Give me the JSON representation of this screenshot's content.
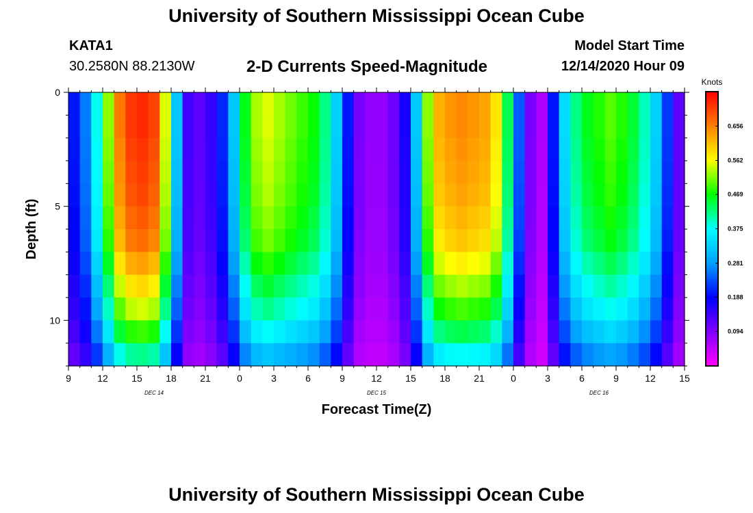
{
  "header": {
    "main_title": "University of Southern Mississippi Ocean Cube",
    "station_id": "KATA1",
    "station_coords": "30.2580N 88.2130W",
    "chart_title": "2-D Currents Speed-Magnitude",
    "model_start_label": "Model Start Time",
    "model_start_value": "12/14/2020 Hour 09"
  },
  "footer": {
    "repeat_title": "University of Southern Mississippi Ocean Cube"
  },
  "chart_data": {
    "type": "heatmap",
    "title": "2-D Currents Speed-Magnitude",
    "xlabel": "Forecast Time(Z)",
    "ylabel": "Depth (ft)",
    "x_range_hours": [
      0,
      54
    ],
    "y_range_ft": [
      0,
      12
    ],
    "y_ticks": [
      "0",
      "5",
      "10"
    ],
    "y_tick_values": [
      0,
      5,
      10
    ],
    "x_ticks": [
      "9",
      "12",
      "15",
      "18",
      "21",
      "0",
      "3",
      "6",
      "9",
      "12",
      "15",
      "18",
      "21",
      "0",
      "3",
      "6",
      "9",
      "12",
      "15"
    ],
    "date_labels": [
      {
        "label": "DEC 14",
        "hour": 7.5
      },
      {
        "label": "DEC 15",
        "hour": 27
      },
      {
        "label": "DEC 16",
        "hour": 46.5
      }
    ],
    "colorbar": {
      "unit": "Knots",
      "min": 0.0,
      "max": 0.75,
      "tick_labels": [
        "0.094",
        "0.188",
        "0.281",
        "0.375",
        "0.469",
        "0.562",
        "0.656"
      ],
      "tick_values": [
        0.094,
        0.188,
        0.281,
        0.375,
        0.469,
        0.562,
        0.656
      ],
      "colors": [
        "#ff00ff",
        "#8000ff",
        "#0000ff",
        "#00a0ff",
        "#00ffff",
        "#00ff00",
        "#ffff00",
        "#ff8000",
        "#ff0000"
      ]
    },
    "time_step_hours": 1,
    "depth_levels": 12,
    "surface_speed_by_hour": [
      0.2,
      0.26,
      0.38,
      0.52,
      0.66,
      0.71,
      0.72,
      0.7,
      0.55,
      0.32,
      0.14,
      0.12,
      0.15,
      0.21,
      0.32,
      0.46,
      0.53,
      0.55,
      0.53,
      0.51,
      0.49,
      0.47,
      0.42,
      0.33,
      0.2,
      0.1,
      0.08,
      0.08,
      0.11,
      0.17,
      0.32,
      0.52,
      0.62,
      0.64,
      0.65,
      0.64,
      0.63,
      0.58,
      0.44,
      0.24,
      0.1,
      0.06,
      0.2,
      0.34,
      0.42,
      0.46,
      0.48,
      0.5,
      0.48,
      0.45,
      0.4,
      0.33,
      0.22,
      0.12,
      0.09
    ],
    "depth_factor_by_level": [
      1.0,
      1.0,
      0.99,
      0.98,
      0.97,
      0.95,
      0.93,
      0.88,
      0.82,
      0.76,
      0.68,
      0.58
    ]
  }
}
